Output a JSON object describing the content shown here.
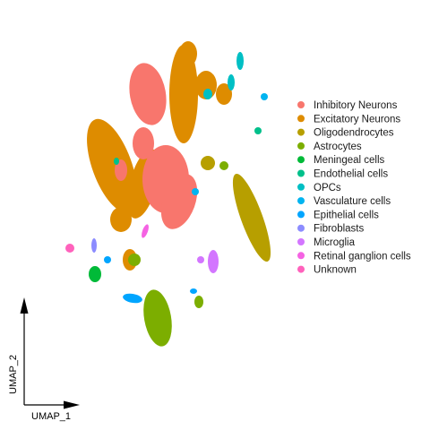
{
  "chart_data": {
    "type": "scatter",
    "title": "",
    "xlabel": "UMAP_1",
    "ylabel": "UMAP_2",
    "legend_position": "right",
    "grid": false,
    "series": [
      {
        "name": "Inhibitory Neurons",
        "color": "#F8766D"
      },
      {
        "name": "Excitatory Neurons",
        "color": "#DE8C00"
      },
      {
        "name": "Oligodendrocytes",
        "color": "#B79F00"
      },
      {
        "name": "Astrocytes",
        "color": "#7CAE00"
      },
      {
        "name": "Meningeal cells",
        "color": "#00BA38"
      },
      {
        "name": "Endothelial cells",
        "color": "#00C08B"
      },
      {
        "name": "OPCs",
        "color": "#00BFC4"
      },
      {
        "name": "Vasculature cells",
        "color": "#00B4F0"
      },
      {
        "name": "Epithelial cells",
        "color": "#00A5FF"
      },
      {
        "name": "Fibroblasts",
        "color": "#8C8CFF"
      },
      {
        "name": "Microglia",
        "color": "#D376FF"
      },
      {
        "name": "Retinal ganglion cells",
        "color": "#F563E3"
      },
      {
        "name": "Unknown",
        "color": "#FF62BC"
      }
    ]
  }
}
